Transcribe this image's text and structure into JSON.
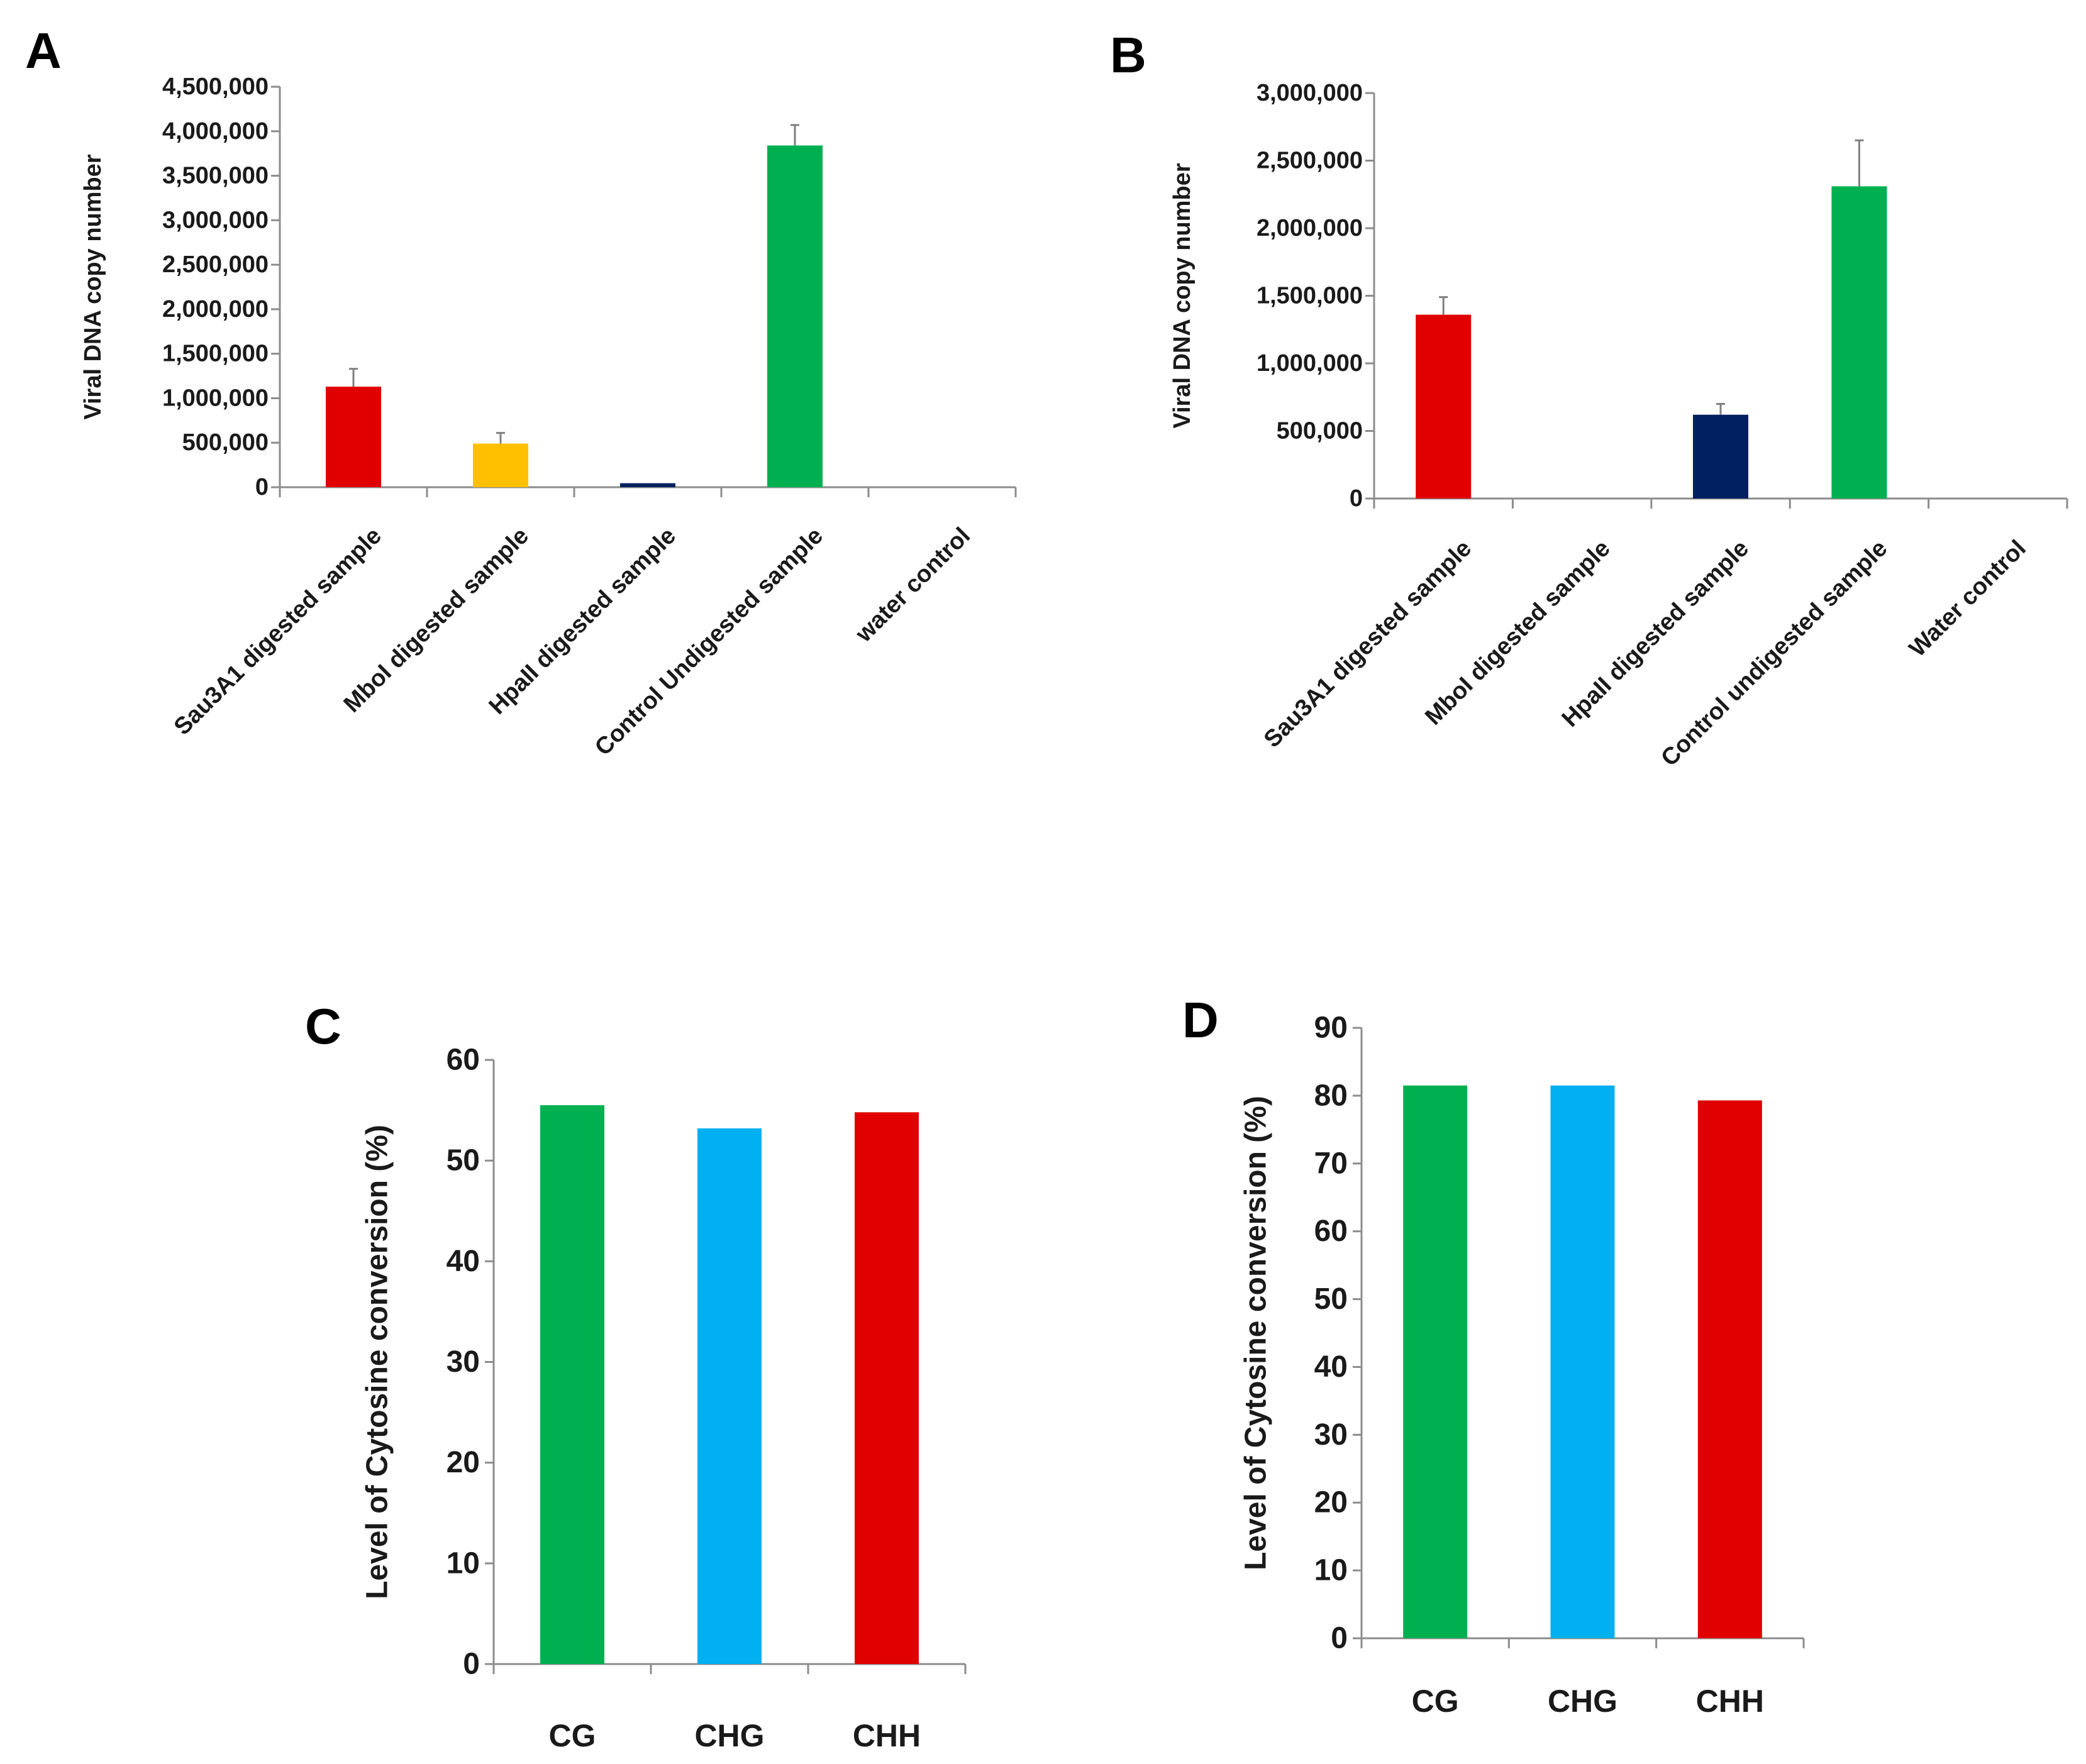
{
  "chart_data": [
    {
      "panel": "A",
      "type": "bar",
      "title": "",
      "xlabel": "",
      "ylabel": "Viral DNA copy number",
      "ylim": [
        0,
        4500000
      ],
      "yticks": [
        "0",
        "500,000",
        "1,000,000",
        "1,500,000",
        "2,000,000",
        "2,500,000",
        "3,000,000",
        "3,500,000",
        "4,000,000",
        "4,500,000"
      ],
      "categories": [
        "Sau3A1 digested sample",
        "MboI digested sample",
        "HpaII digested sample",
        "Control Undigested sample",
        "water control"
      ],
      "values": [
        1130000,
        490000,
        45000,
        3840000,
        0
      ],
      "errors": [
        200000,
        120000,
        0,
        230000,
        0
      ],
      "colors": [
        "#e00000",
        "#ffc000",
        "#002060",
        "#00b050",
        "#ffffff"
      ],
      "grid": false
    },
    {
      "panel": "B",
      "type": "bar",
      "title": "",
      "xlabel": "",
      "ylabel": "Viral DNA copy number",
      "ylim": [
        0,
        3000000
      ],
      "yticks": [
        "0",
        "500,000",
        "1,000,000",
        "1,500,000",
        "2,000,000",
        "2,500,000",
        "3,000,000"
      ],
      "categories": [
        "Sau3A1 digested sample",
        "MboI digested sample",
        "HpaII digested sample",
        "Control undigested sample",
        "Water control"
      ],
      "values": [
        1360000,
        0,
        620000,
        2310000,
        0
      ],
      "errors": [
        130000,
        0,
        80000,
        340000,
        0
      ],
      "colors": [
        "#e00000",
        "#ffc000",
        "#002060",
        "#00b050",
        "#ffffff"
      ],
      "grid": false
    },
    {
      "panel": "C",
      "type": "bar",
      "title": "",
      "xlabel": "",
      "ylabel": "Level of Cytosine conversion (%)",
      "ylim": [
        0,
        60
      ],
      "yticks": [
        "0",
        "10",
        "20",
        "30",
        "40",
        "50",
        "60"
      ],
      "categories": [
        "CG",
        "CHG",
        "CHH"
      ],
      "values": [
        55.5,
        53.2,
        54.8
      ],
      "colors": [
        "#00b050",
        "#00b0f0",
        "#e00000"
      ],
      "grid": false
    },
    {
      "panel": "D",
      "type": "bar",
      "title": "",
      "xlabel": "",
      "ylabel": "Level of Cytosine conversion (%)",
      "ylim": [
        0,
        90
      ],
      "yticks": [
        "0",
        "10",
        "20",
        "30",
        "40",
        "50",
        "60",
        "70",
        "80",
        "90"
      ],
      "categories": [
        "CG",
        "CHG",
        "CHH"
      ],
      "values": [
        81.5,
        81.5,
        79.3
      ],
      "colors": [
        "#00b050",
        "#00b0f0",
        "#e00000"
      ],
      "grid": false
    }
  ]
}
